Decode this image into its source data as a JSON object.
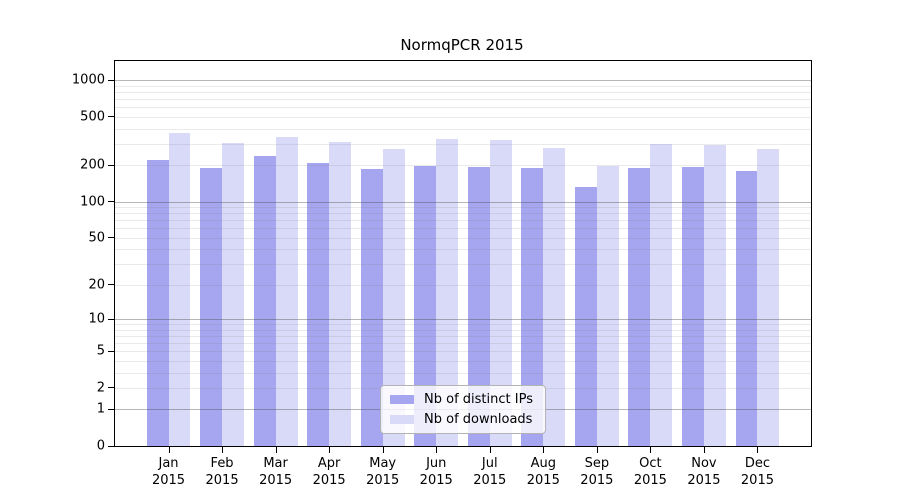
{
  "title": "NormqPCR 2015",
  "chart_data": {
    "type": "bar",
    "title": "NormqPCR 2015",
    "categories": [
      "Jan",
      "Feb",
      "Mar",
      "Apr",
      "May",
      "Jun",
      "Jul",
      "Aug",
      "Sep",
      "Oct",
      "Nov",
      "Dec"
    ],
    "category_year": "2015",
    "series": [
      {
        "name": "Nb of distinct IPs",
        "color": "#a5a5f0",
        "values": [
          222,
          188,
          238,
          207,
          185,
          197,
          192,
          188,
          133,
          190,
          192,
          180
        ]
      },
      {
        "name": "Nb of downloads",
        "color": "#d9d9f8",
        "values": [
          370,
          306,
          342,
          308,
          272,
          330,
          320,
          275,
          198,
          302,
          291,
          270
        ]
      }
    ],
    "y_scale": "log1p",
    "ylim": [
      0,
      1438
    ],
    "y_ticks": [
      0,
      1,
      2,
      5,
      10,
      20,
      50,
      100,
      200,
      500,
      1000
    ],
    "y_minor_gridlines": [
      2,
      3,
      4,
      5,
      6,
      7,
      8,
      9,
      20,
      30,
      40,
      50,
      60,
      70,
      80,
      90,
      200,
      300,
      400,
      500,
      600,
      700,
      800,
      900
    ],
    "y_major_gridlines": [
      1,
      10,
      100,
      1000
    ],
    "grid": true,
    "legend_position": "lower center",
    "xlabel": "",
    "ylabel": "",
    "colors": {
      "axis": "#000000",
      "major_grid": "#b4b4b4",
      "minor_grid": "#e7e7e7"
    }
  }
}
